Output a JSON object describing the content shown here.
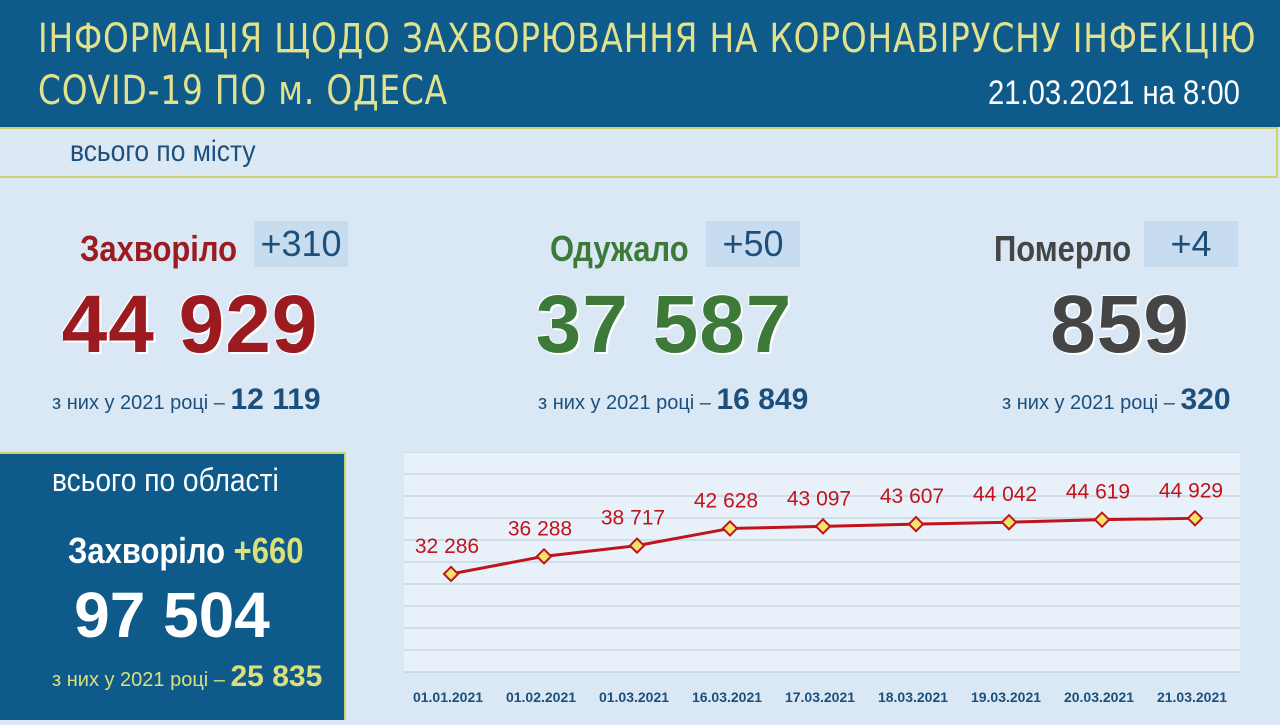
{
  "header": {
    "title_line1": "ІНФОРМАЦІЯ ЩОДО ЗАХВОРЮВАННЯ НА КОРОНАВІРУСНУ ІНФЕКЦІЮ",
    "title_line2": "COVID-19 ПО м. ОДЕСА",
    "date": "21.03.2021 на 8:00"
  },
  "city": {
    "section_label": "всього по місту",
    "sick": {
      "label": "Захворіло",
      "delta": "+310",
      "total": "44 929",
      "year_prefix": "з них у 2021 році – ",
      "year_value": "12 119"
    },
    "recovered": {
      "label": "Одужало",
      "delta": "+50",
      "total": "37 587",
      "year_prefix": "з них у 2021 році – ",
      "year_value": "16 849"
    },
    "died": {
      "label": "Померло",
      "delta": "+4",
      "total": "859",
      "year_prefix": "з них у 2021 році – ",
      "year_value": "320"
    }
  },
  "region": {
    "section_label": "всього по області",
    "sick_label": "Захворіло",
    "delta": "+660",
    "total": "97 504",
    "year_prefix": "з них у 2021 році – ",
    "year_value": "25 835"
  },
  "colors": {
    "header_bg": "#0e5a8a",
    "title_yellow": "#e3e28c",
    "sick_red": "#9b1b20",
    "recovered_green": "#3d7a3a",
    "died_gray": "#454545",
    "line_red": "#c0141c",
    "marker_yellow": "#f2e56b",
    "region_delta": "#d9e07c"
  },
  "chart_data": {
    "type": "line",
    "categories": [
      "01.01.2021",
      "01.02.2021",
      "01.03.2021",
      "16.03.2021",
      "17.03.2021",
      "18.03.2021",
      "19.03.2021",
      "20.03.2021",
      "21.03.2021"
    ],
    "values": [
      32286,
      36288,
      38717,
      42628,
      43097,
      43607,
      44042,
      44619,
      44929
    ],
    "value_labels": [
      "32 286",
      "36 288",
      "38 717",
      "42 628",
      "43 097",
      "43 607",
      "44 042",
      "44 619",
      "44 929"
    ],
    "ylim": [
      10000,
      60000
    ],
    "grid": true,
    "legend": "none"
  }
}
